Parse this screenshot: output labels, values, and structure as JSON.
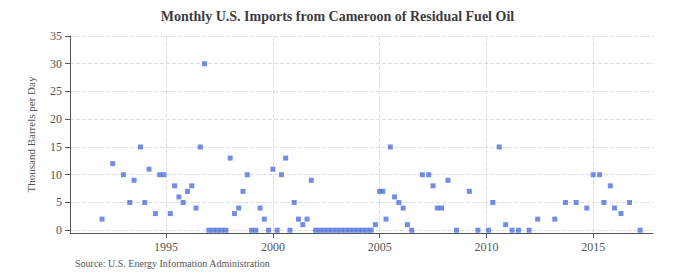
{
  "chart_data": {
    "type": "scatter",
    "title": "Monthly U.S. Imports from Cameroon of Residual Fuel Oil",
    "ylabel": "Thousand Barrels per Day",
    "annotations": [
      "Source: U.S. Energy Information Administration"
    ],
    "marker": "square",
    "grid": true,
    "xlim": [
      1990.5,
      2017.8
    ],
    "xticks": [
      1995,
      2000,
      2005,
      2010,
      2015
    ],
    "ylim": [
      -0.5,
      35
    ],
    "yticks": [
      0,
      5,
      10,
      15,
      20,
      25,
      30,
      35
    ],
    "x": [
      1992.0,
      1992.5,
      1993.0,
      1993.3,
      1993.5,
      1993.8,
      1994.0,
      1994.2,
      1994.5,
      1994.7,
      1994.9,
      1995.2,
      1995.4,
      1995.6,
      1995.8,
      1996.0,
      1996.2,
      1996.4,
      1996.6,
      1996.8,
      1997.0,
      1997.2,
      1997.4,
      1997.6,
      1997.8,
      1998.0,
      1998.2,
      1998.4,
      1998.6,
      1998.8,
      1999.0,
      1999.2,
      1999.4,
      1999.6,
      1999.8,
      2000.0,
      2000.2,
      2000.4,
      2000.6,
      2000.8,
      2001.0,
      2001.2,
      2001.4,
      2001.6,
      2001.8,
      2002.0,
      2002.2,
      2002.4,
      2002.6,
      2002.8,
      2003.0,
      2003.2,
      2003.4,
      2003.6,
      2003.8,
      2004.0,
      2004.2,
      2004.4,
      2004.6,
      2004.8,
      2005.0,
      2005.15,
      2005.3,
      2005.5,
      2005.7,
      2005.9,
      2006.1,
      2006.3,
      2006.5,
      2007.0,
      2007.3,
      2007.5,
      2007.7,
      2007.9,
      2008.2,
      2008.6,
      2009.2,
      2009.6,
      2010.1,
      2010.3,
      2010.6,
      2010.9,
      2011.2,
      2011.5,
      2012.0,
      2012.4,
      2013.2,
      2013.7,
      2014.2,
      2014.7,
      2015.0,
      2015.3,
      2015.5,
      2015.8,
      2016.0,
      2016.3,
      2016.7,
      2017.2
    ],
    "values": [
      2,
      12,
      10,
      5,
      9,
      15,
      5,
      11,
      3,
      10,
      10,
      3,
      8,
      6,
      5,
      7,
      8,
      4,
      15,
      30,
      0,
      0,
      0,
      0,
      0,
      13,
      3,
      4,
      7,
      10,
      0,
      0,
      4,
      2,
      0,
      11,
      0,
      10,
      13,
      0,
      5,
      2,
      1,
      2,
      9,
      0,
      0,
      0,
      0,
      0,
      0,
      0,
      0,
      0,
      0,
      0,
      0,
      0,
      0,
      1,
      7,
      7,
      2,
      15,
      6,
      5,
      4,
      1,
      0,
      10,
      10,
      8,
      4,
      4,
      9,
      0,
      7,
      0,
      0,
      5,
      15,
      1,
      0,
      0,
      0,
      2,
      2,
      5,
      5,
      4,
      10,
      10,
      5,
      8,
      4,
      3,
      5,
      0
    ]
  }
}
